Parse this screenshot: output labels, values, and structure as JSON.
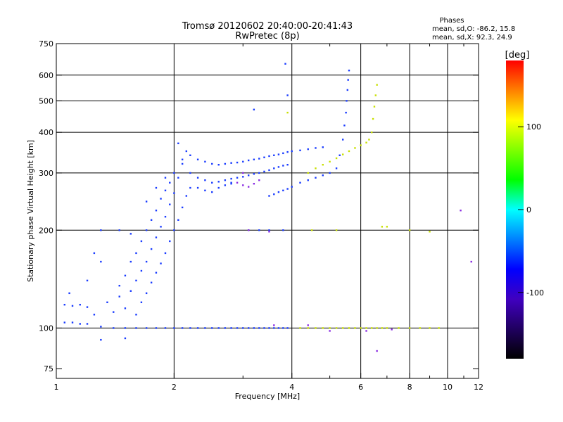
{
  "chart_data": {
    "type": "scatter",
    "title": "Tromsø 20120602 20:40:00-20:41:43",
    "subtitle": "RwPretec (8p)",
    "xlabel": "Frequency [MHz]",
    "ylabel": "Stationary phase Virtual Height [km]",
    "xscale": "log",
    "yscale": "log",
    "xlim": [
      1,
      12
    ],
    "ylim": [
      70,
      750
    ],
    "grid": true,
    "x_ticks": [
      {
        "v": 1,
        "label": "1"
      },
      {
        "v": 2,
        "label": "2"
      },
      {
        "v": 4,
        "label": "4"
      },
      {
        "v": 6,
        "label": "6"
      },
      {
        "v": 8,
        "label": "8"
      },
      {
        "v": 10,
        "label": "10"
      },
      {
        "v": 12,
        "label": "12"
      }
    ],
    "x_major_grid": [
      2,
      4,
      6,
      8,
      10
    ],
    "x_minor_ticks": [
      3,
      5,
      7,
      9,
      11
    ],
    "y_ticks": [
      {
        "v": 75,
        "label": "75"
      },
      {
        "v": 100,
        "label": "100"
      },
      {
        "v": 200,
        "label": "200"
      },
      {
        "v": 300,
        "label": "300"
      },
      {
        "v": 400,
        "label": "400"
      },
      {
        "v": 500,
        "label": "500"
      },
      {
        "v": 600,
        "label": "600"
      },
      {
        "v": 750,
        "label": "750"
      }
    ],
    "y_grid": [
      100,
      200,
      300,
      400,
      500,
      600
    ],
    "info_title": "Phases",
    "info_lines": [
      "mean, sd,O: -86.2, 15.8",
      "mean, sd,X:  92.3, 24.9"
    ],
    "colorbar": {
      "title": "[deg]",
      "range": [
        -180,
        180
      ],
      "ticks": [
        {
          "v": 100,
          "label": "100"
        },
        {
          "v": 0,
          "label": "0"
        },
        {
          "v": -100,
          "label": "-100"
        }
      ],
      "colormap": [
        "#ff0000",
        "#ff8000",
        "#ffff00",
        "#80ff00",
        "#00ff00",
        "#00ffff",
        "#0080ff",
        "#0000ff",
        "#4000c0",
        "#200060",
        "#000000"
      ]
    },
    "series": [
      {
        "mode": "O",
        "color": "#1a3cff",
        "points": [
          [
            1.05,
            104
          ],
          [
            1.1,
            104
          ],
          [
            1.15,
            103
          ],
          [
            1.2,
            103
          ],
          [
            1.3,
            101
          ],
          [
            1.4,
            100
          ],
          [
            1.5,
            100
          ],
          [
            1.6,
            100
          ],
          [
            1.7,
            100
          ],
          [
            1.8,
            100
          ],
          [
            1.9,
            100
          ],
          [
            2.0,
            100
          ],
          [
            2.1,
            100
          ],
          [
            2.2,
            100
          ],
          [
            2.3,
            100
          ],
          [
            2.4,
            100
          ],
          [
            2.5,
            100
          ],
          [
            2.6,
            100
          ],
          [
            2.7,
            100
          ],
          [
            2.8,
            100
          ],
          [
            2.9,
            100
          ],
          [
            3.0,
            100
          ],
          [
            3.1,
            100
          ],
          [
            3.2,
            100
          ],
          [
            3.3,
            100
          ],
          [
            3.4,
            100
          ],
          [
            3.5,
            100
          ],
          [
            3.6,
            100
          ],
          [
            3.7,
            100
          ],
          [
            3.8,
            100
          ],
          [
            3.9,
            100
          ],
          [
            1.05,
            118
          ],
          [
            1.1,
            117
          ],
          [
            1.15,
            118
          ],
          [
            1.2,
            116
          ],
          [
            1.08,
            128
          ],
          [
            1.25,
            110
          ],
          [
            1.35,
            120
          ],
          [
            1.45,
            125
          ],
          [
            1.5,
            115
          ],
          [
            1.55,
            130
          ],
          [
            1.6,
            140
          ],
          [
            1.65,
            150
          ],
          [
            1.7,
            160
          ],
          [
            1.75,
            175
          ],
          [
            1.8,
            190
          ],
          [
            1.85,
            205
          ],
          [
            1.9,
            220
          ],
          [
            1.95,
            240
          ],
          [
            2.0,
            260
          ],
          [
            2.05,
            290
          ],
          [
            2.1,
            320
          ],
          [
            2.15,
            350
          ],
          [
            1.4,
            112
          ],
          [
            1.45,
            135
          ],
          [
            1.5,
            145
          ],
          [
            1.55,
            160
          ],
          [
            1.6,
            170
          ],
          [
            1.65,
            185
          ],
          [
            1.7,
            200
          ],
          [
            1.75,
            215
          ],
          [
            1.8,
            230
          ],
          [
            1.85,
            250
          ],
          [
            1.9,
            265
          ],
          [
            1.95,
            280
          ],
          [
            2.0,
            300
          ],
          [
            2.1,
            330
          ],
          [
            2.05,
            370
          ],
          [
            1.6,
            110
          ],
          [
            1.65,
            120
          ],
          [
            1.7,
            128
          ],
          [
            1.75,
            138
          ],
          [
            1.8,
            148
          ],
          [
            1.85,
            158
          ],
          [
            1.9,
            170
          ],
          [
            1.95,
            185
          ],
          [
            2.0,
            200
          ],
          [
            2.05,
            215
          ],
          [
            2.1,
            235
          ],
          [
            2.15,
            255
          ],
          [
            2.2,
            270
          ],
          [
            1.25,
            170
          ],
          [
            1.3,
            200
          ],
          [
            1.45,
            200
          ],
          [
            1.55,
            195
          ],
          [
            1.7,
            245
          ],
          [
            1.8,
            270
          ],
          [
            1.9,
            290
          ],
          [
            1.2,
            140
          ],
          [
            1.3,
            160
          ],
          [
            2.2,
            300
          ],
          [
            2.3,
            290
          ],
          [
            2.4,
            285
          ],
          [
            2.5,
            280
          ],
          [
            2.6,
            282
          ],
          [
            2.7,
            285
          ],
          [
            2.8,
            288
          ],
          [
            2.9,
            290
          ],
          [
            3.0,
            292
          ],
          [
            3.1,
            295
          ],
          [
            3.2,
            298
          ],
          [
            3.3,
            300
          ],
          [
            3.4,
            303
          ],
          [
            3.5,
            306
          ],
          [
            3.6,
            310
          ],
          [
            3.7,
            313
          ],
          [
            3.8,
            316
          ],
          [
            3.9,
            318
          ],
          [
            2.3,
            270
          ],
          [
            2.4,
            265
          ],
          [
            2.5,
            262
          ],
          [
            2.6,
            270
          ],
          [
            2.7,
            275
          ],
          [
            2.8,
            278
          ],
          [
            2.2,
            340
          ],
          [
            2.3,
            330
          ],
          [
            2.4,
            325
          ],
          [
            2.5,
            320
          ],
          [
            2.6,
            318
          ],
          [
            2.7,
            320
          ],
          [
            2.8,
            322
          ],
          [
            2.9,
            323
          ],
          [
            3.0,
            325
          ],
          [
            3.1,
            328
          ],
          [
            3.2,
            330
          ],
          [
            3.3,
            332
          ],
          [
            3.4,
            335
          ],
          [
            3.5,
            338
          ],
          [
            3.6,
            340
          ],
          [
            3.7,
            342
          ],
          [
            3.8,
            345
          ],
          [
            3.9,
            348
          ],
          [
            4.0,
            350
          ],
          [
            4.2,
            352
          ],
          [
            4.4,
            355
          ],
          [
            4.6,
            358
          ],
          [
            4.8,
            360
          ],
          [
            3.5,
            255
          ],
          [
            3.6,
            258
          ],
          [
            3.7,
            262
          ],
          [
            3.8,
            265
          ],
          [
            3.9,
            268
          ],
          [
            4.0,
            272
          ],
          [
            4.2,
            280
          ],
          [
            4.4,
            285
          ],
          [
            4.6,
            290
          ],
          [
            4.8,
            295
          ],
          [
            5.0,
            300
          ],
          [
            5.2,
            310
          ],
          [
            5.3,
            340
          ],
          [
            5.4,
            380
          ],
          [
            5.45,
            420
          ],
          [
            5.5,
            460
          ],
          [
            5.52,
            500
          ],
          [
            5.55,
            540
          ],
          [
            5.57,
            580
          ],
          [
            5.6,
            620
          ],
          [
            3.1,
            200
          ],
          [
            3.3,
            200
          ],
          [
            3.5,
            200
          ],
          [
            3.8,
            200
          ],
          [
            2.8,
            280
          ],
          [
            3.2,
            470
          ],
          [
            3.85,
            650
          ],
          [
            3.9,
            520
          ],
          [
            1.5,
            93
          ],
          [
            1.3,
            92
          ]
        ]
      },
      {
        "mode": "X",
        "color": "#c8e000",
        "points": [
          [
            4.2,
            100
          ],
          [
            4.4,
            100
          ],
          [
            4.6,
            100
          ],
          [
            4.8,
            100
          ],
          [
            5.0,
            100
          ],
          [
            5.2,
            100
          ],
          [
            5.4,
            100
          ],
          [
            5.6,
            100
          ],
          [
            5.8,
            100
          ],
          [
            6.0,
            100
          ],
          [
            6.2,
            100
          ],
          [
            6.4,
            100
          ],
          [
            6.6,
            100
          ],
          [
            6.8,
            100
          ],
          [
            7.0,
            100
          ],
          [
            7.5,
            100
          ],
          [
            8.0,
            100
          ],
          [
            8.5,
            100
          ],
          [
            9.0,
            100
          ],
          [
            9.5,
            100
          ],
          [
            4.4,
            300
          ],
          [
            4.6,
            310
          ],
          [
            4.8,
            318
          ],
          [
            5.0,
            325
          ],
          [
            5.2,
            333
          ],
          [
            5.4,
            342
          ],
          [
            5.6,
            350
          ],
          [
            5.8,
            358
          ],
          [
            6.0,
            365
          ],
          [
            6.2,
            372
          ],
          [
            6.3,
            380
          ],
          [
            6.4,
            400
          ],
          [
            6.45,
            440
          ],
          [
            6.5,
            480
          ],
          [
            6.55,
            520
          ],
          [
            6.6,
            560
          ],
          [
            7.0,
            205
          ],
          [
            8.0,
            200
          ],
          [
            9.0,
            198
          ],
          [
            3.9,
            460
          ],
          [
            4.5,
            200
          ],
          [
            5.2,
            200
          ],
          [
            6.8,
            205
          ]
        ]
      },
      {
        "mode": "mixed",
        "color": "#8a2be2",
        "points": [
          [
            2.9,
            280
          ],
          [
            3.0,
            275
          ],
          [
            3.1,
            272
          ],
          [
            3.2,
            278
          ],
          [
            3.0,
            300
          ],
          [
            3.3,
            285
          ],
          [
            3.1,
            200
          ],
          [
            3.5,
            198
          ],
          [
            3.6,
            102
          ],
          [
            4.4,
            102
          ],
          [
            5.0,
            98
          ],
          [
            6.2,
            98
          ],
          [
            7.2,
            99
          ],
          [
            6.6,
            85
          ],
          [
            10.8,
            230
          ],
          [
            11.5,
            160
          ]
        ]
      }
    ]
  }
}
